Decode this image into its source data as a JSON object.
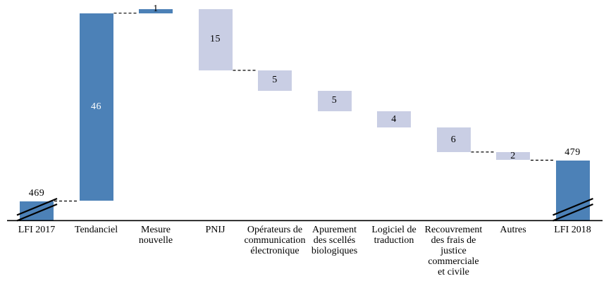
{
  "figure": {
    "background": "#ffffff"
  },
  "chart_data": {
    "type": "bar",
    "subtype": "waterfall",
    "title": "",
    "xlabel": "",
    "ylabel": "",
    "gridlines": false,
    "legend": false,
    "axis_baseline_broken": true,
    "categories": [
      "LFI 2017",
      "Tendanciel",
      "Mesure nouvelle",
      "PNIJ",
      "Opérateurs de communication électronique",
      "Apurement des scellés biologiques",
      "Logiciel de traduction",
      "Recouvrement des frais de justice commerciale et civile",
      "Autres",
      "LFI 2018"
    ],
    "category_lines": [
      [
        "LFI 2017"
      ],
      [
        "Tendanciel"
      ],
      [
        "Mesure",
        "nouvelle"
      ],
      [
        "PNIJ"
      ],
      [
        "Opérateurs de",
        "communication",
        "électronique"
      ],
      [
        "Apurement",
        "des scellés",
        "biologiques"
      ],
      [
        "Logiciel de",
        "traduction"
      ],
      [
        "Recouvrement",
        "des frais de",
        "justice",
        "commerciale",
        "et civile"
      ],
      [
        "Autres"
      ],
      [
        "LFI 2018"
      ]
    ],
    "bars": [
      {
        "key": "lfi-2017",
        "category": "LFI 2017",
        "value": 469,
        "display_value": "469",
        "role": "total",
        "color": "dark",
        "label_pos": "above",
        "label_color": "#000000",
        "axis_break": true
      },
      {
        "key": "tendanciel",
        "category": "Tendanciel",
        "value": 46,
        "display_value": "46",
        "role": "increase",
        "color": "dark",
        "label_pos": "inside",
        "label_color": "#ffffff",
        "axis_break": false
      },
      {
        "key": "mesure-nouvelle",
        "category": "Mesure nouvelle",
        "value": 1,
        "display_value": "1",
        "role": "increase",
        "color": "dark",
        "label_pos": "above",
        "label_color": "#000000",
        "axis_break": false
      },
      {
        "key": "pnij",
        "category": "PNIJ",
        "value": 15,
        "display_value": "15",
        "role": "decrease",
        "color": "light",
        "label_pos": "inside",
        "label_color": "#000000",
        "axis_break": false
      },
      {
        "key": "operateurs-communication-electronique",
        "category": "Opérateurs de communication électronique",
        "value": 5,
        "display_value": "5",
        "role": "decrease",
        "color": "light",
        "label_pos": "inside",
        "label_color": "#000000",
        "axis_break": false
      },
      {
        "key": "apurement-scelles-biologiques",
        "category": "Apurement des scellés biologiques",
        "value": 5,
        "display_value": "5",
        "role": "decrease",
        "color": "light",
        "label_pos": "inside",
        "label_color": "#000000",
        "axis_break": false
      },
      {
        "key": "logiciel-traduction",
        "category": "Logiciel de traduction",
        "value": 4,
        "display_value": "4",
        "role": "decrease",
        "color": "light",
        "label_pos": "inside",
        "label_color": "#000000",
        "axis_break": false
      },
      {
        "key": "recouvrement-frais-justice",
        "category": "Recouvrement des frais de justice commerciale et civile",
        "value": 6,
        "display_value": "6",
        "role": "decrease",
        "color": "light",
        "label_pos": "inside",
        "label_color": "#000000",
        "axis_break": false
      },
      {
        "key": "autres",
        "category": "Autres",
        "value": 2,
        "display_value": "2",
        "role": "decrease",
        "color": "light",
        "label_pos": "inside",
        "label_color": "#000000",
        "axis_break": false
      },
      {
        "key": "lfi-2018",
        "category": "LFI 2018",
        "value": 479,
        "display_value": "479",
        "role": "total",
        "color": "dark",
        "label_pos": "above",
        "label_color": "#000000",
        "axis_break": true
      }
    ],
    "connectors": [
      [
        0,
        1
      ],
      [
        1,
        2
      ],
      [
        3,
        4
      ],
      [
        7,
        8
      ],
      [
        8,
        9
      ]
    ],
    "colors": {
      "bar_dark": "#4c81b7",
      "bar_light": "#c9cee4",
      "axis": "#000000",
      "connector": "#000000",
      "break_mark": "#000000"
    }
  }
}
